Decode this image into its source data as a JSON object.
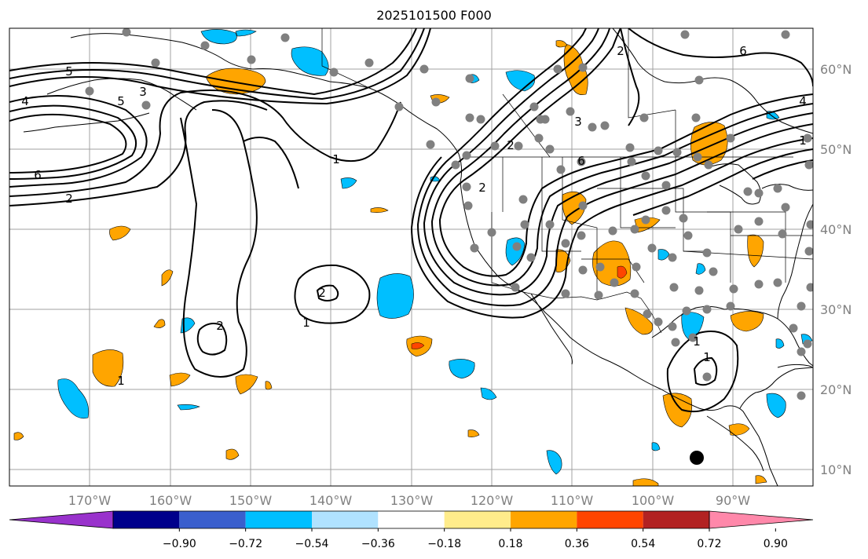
{
  "title": "2025101500 F000",
  "lon_labels": [
    "170°W",
    "160°W",
    "150°W",
    "140°W",
    "130°W",
    "120°W",
    "110°W",
    "100°W",
    "90°W"
  ],
  "lat_labels": [
    "60°N",
    "50°N",
    "40°N",
    "30°N",
    "20°N",
    "10°N"
  ],
  "colorbar": {
    "ticks": [
      "−0.90",
      "−0.72",
      "−0.54",
      "−0.36",
      "−0.18",
      "0.18",
      "0.36",
      "0.54",
      "0.72",
      "0.90"
    ],
    "colors": [
      "#9932cc",
      "#00008b",
      "#3a5fcd",
      "#00bfff",
      "#b0e2ff",
      "#ffffff",
      "#ffec8b",
      "#ffa500",
      "#ff4500",
      "#b22222",
      "#ff88aa"
    ]
  },
  "contour_labels": [
    "5",
    "4",
    "3",
    "5",
    "6",
    "2",
    "1",
    "1",
    "2",
    "1",
    "2",
    "1",
    "3",
    "6",
    "2",
    "4",
    "6",
    "1",
    "2",
    "1",
    "2"
  ],
  "colors": {
    "gridline": "#a0a0a0",
    "axis_label": "#808080",
    "station": "#808080",
    "land": "#000000"
  }
}
